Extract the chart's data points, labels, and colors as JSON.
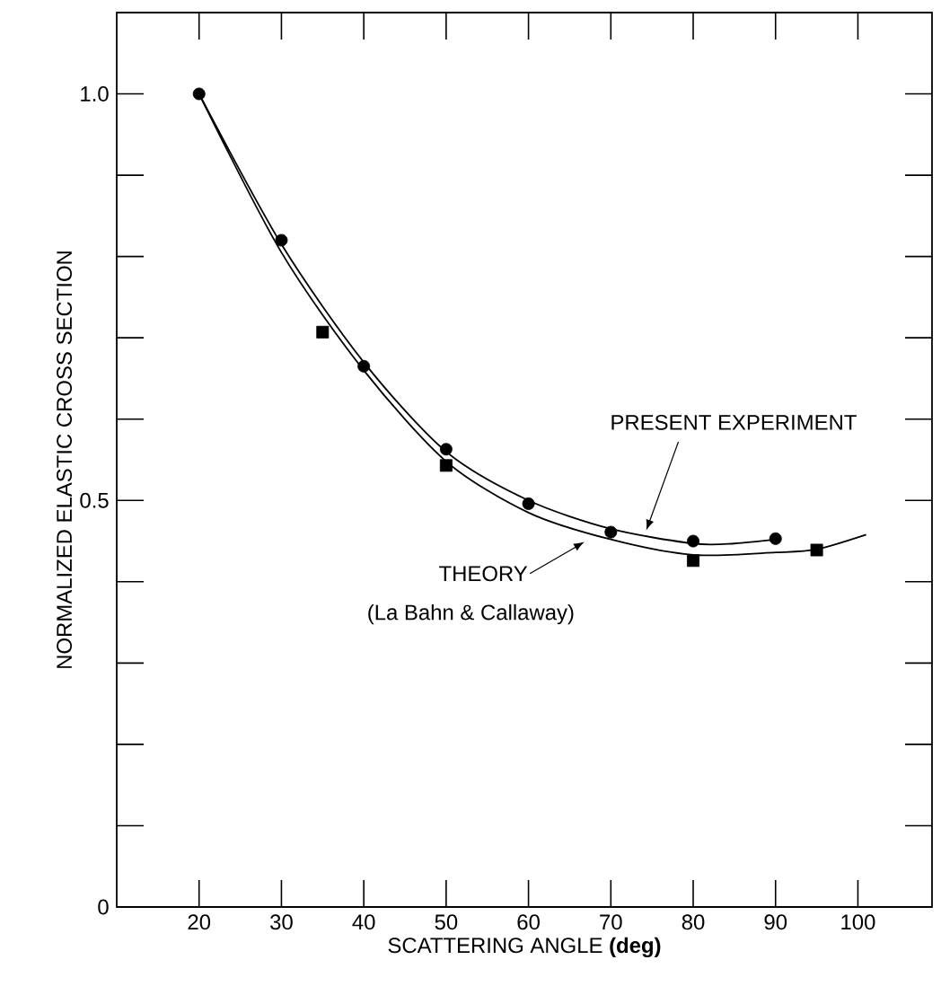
{
  "chart_data": {
    "type": "line",
    "xlabel": "SCATTERING ANGLE **(deg)**",
    "ylabel": "NORMALIZED ELASTIC CROSS SECTION",
    "xlim": [
      10,
      109
    ],
    "ylim": [
      0,
      1.1
    ],
    "xticks": [
      20,
      30,
      40,
      50,
      60,
      70,
      80,
      90,
      100
    ],
    "yticks": [
      0,
      {
        "value": 0.1,
        "label": null
      },
      {
        "value": 0.2,
        "label": null
      },
      {
        "value": 0.3,
        "label": null
      },
      {
        "value": 0.4,
        "label": null
      },
      0.5,
      {
        "value": 0.6,
        "label": null
      },
      {
        "value": 0.7,
        "label": null
      },
      {
        "value": 0.8,
        "label": null
      },
      {
        "value": 0.9,
        "label": null
      },
      {
        "value": 1.0,
        "label": "1.0"
      }
    ],
    "annotations": [
      "(La Bahn & Callaway)"
    ],
    "legend": "right",
    "series": [
      {
        "name": "PRESENT EXPERIMENT",
        "color": "#000000",
        "line_style": "solid",
        "marker": "none",
        "x": [
          20,
          30,
          40,
          50,
          60,
          70,
          80,
          85,
          90
        ],
        "values": [
          1.0,
          0.815,
          0.67,
          0.56,
          0.5,
          0.465,
          0.447,
          0.447,
          0.452
        ]
      },
      {
        "name": "THEORY",
        "color": "#000000",
        "line_style": "solid",
        "marker": "none",
        "x": [
          20,
          30,
          40,
          50,
          60,
          70,
          80,
          90,
          95,
          101
        ],
        "values": [
          1.0,
          0.805,
          0.66,
          0.548,
          0.485,
          0.452,
          0.433,
          0.436,
          0.44,
          0.458
        ]
      },
      {
        "type": "scatter",
        "color": "#000000",
        "marker": "circle",
        "x": [
          20,
          30,
          40,
          50,
          60,
          70,
          80,
          90
        ],
        "values": [
          1.0,
          0.82,
          0.665,
          0.563,
          0.496,
          0.461,
          0.45,
          0.453
        ]
      },
      {
        "type": "scatter",
        "color": "#000000",
        "marker": "square",
        "x": [
          35,
          50,
          80,
          95
        ],
        "values": [
          0.707,
          0.543,
          0.426,
          0.439
        ]
      }
    ]
  }
}
